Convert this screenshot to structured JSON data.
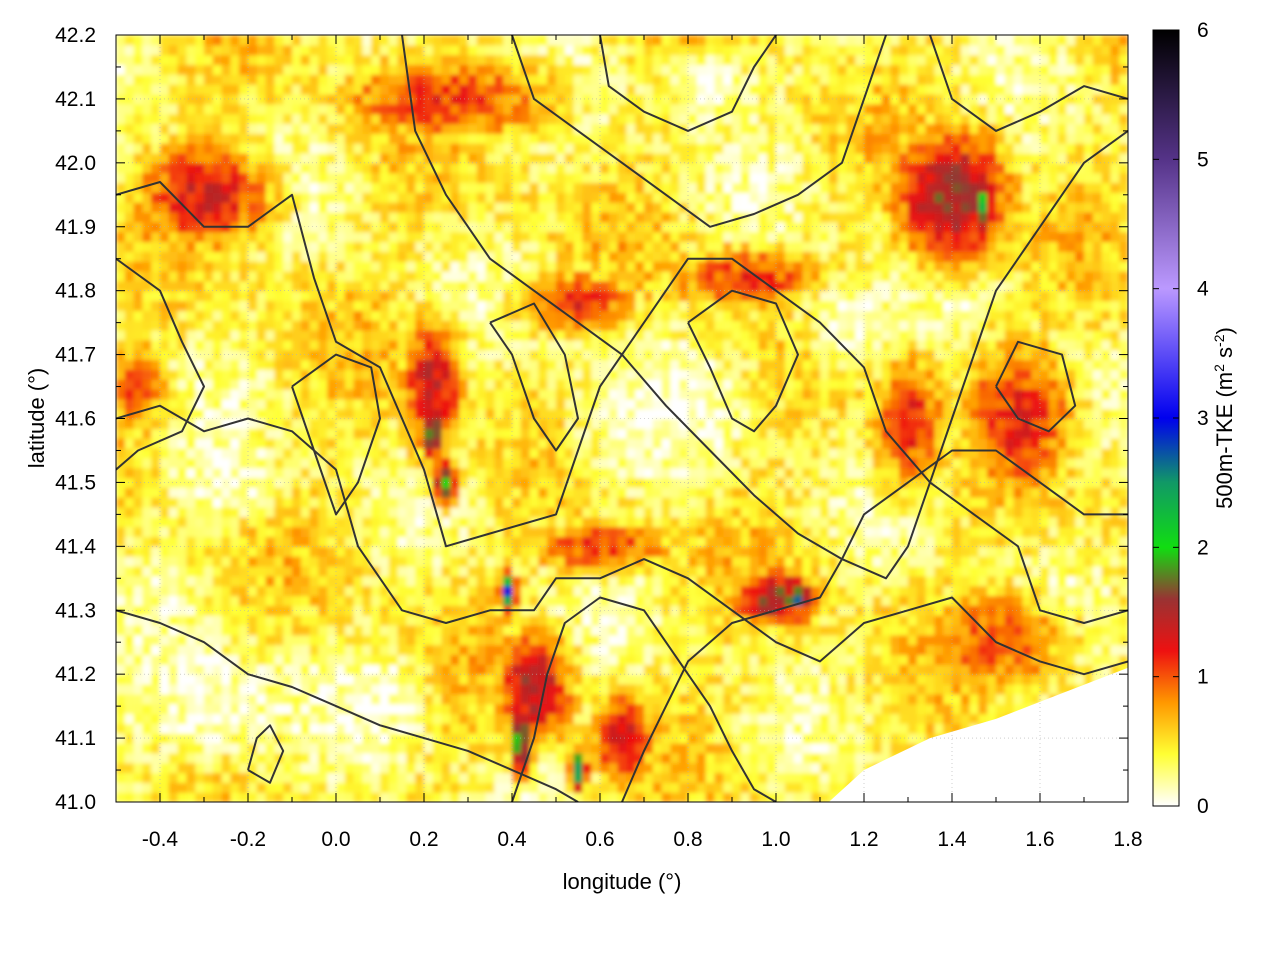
{
  "chart_data": {
    "type": "heatmap",
    "title": "",
    "xlabel": "longitude (°)",
    "ylabel": "latitude (°)",
    "xlim": [
      -0.5,
      1.8
    ],
    "ylim": [
      41.0,
      42.2
    ],
    "x_ticks": [
      -0.4,
      -0.2,
      0.0,
      0.2,
      0.4,
      0.6,
      0.8,
      1.0,
      1.2,
      1.4,
      1.6,
      1.8
    ],
    "x_tick_labels": [
      "-0.4",
      "-0.2",
      "0.0",
      "0.2",
      "0.4",
      "0.6",
      "0.8",
      "1.0",
      "1.2",
      "1.4",
      "1.6",
      "1.8"
    ],
    "y_ticks": [
      41.0,
      41.1,
      41.2,
      41.3,
      41.4,
      41.5,
      41.6,
      41.7,
      41.8,
      41.9,
      42.0,
      42.1,
      42.2
    ],
    "y_tick_labels": [
      "41.0",
      "41.1",
      "41.2",
      "41.3",
      "41.4",
      "41.5",
      "41.6",
      "41.7",
      "41.8",
      "41.9",
      "42.0",
      "42.1",
      "42.2"
    ],
    "grid": true,
    "colorbar": {
      "label_prefix": "500m-TKE (m",
      "label_sup1": "2",
      "label_mid": " s",
      "label_sup2": "-2",
      "label_suffix": ")",
      "range": [
        0,
        6
      ],
      "ticks": [
        0,
        1,
        2,
        3,
        4,
        5,
        6
      ],
      "tick_labels": [
        "0",
        "1",
        "2",
        "3",
        "4",
        "5",
        "6"
      ],
      "stops": [
        {
          "value": 0.0,
          "color": "#ffffff"
        },
        {
          "value": 0.4,
          "color": "#ffff33"
        },
        {
          "value": 0.8,
          "color": "#ff9900"
        },
        {
          "value": 1.2,
          "color": "#ee1111"
        },
        {
          "value": 1.6,
          "color": "#993333"
        },
        {
          "value": 2.0,
          "color": "#11dd11"
        },
        {
          "value": 2.5,
          "color": "#119966"
        },
        {
          "value": 3.0,
          "color": "#0000ee"
        },
        {
          "value": 4.0,
          "color": "#bb99ff"
        },
        {
          "value": 5.0,
          "color": "#553388"
        },
        {
          "value": 6.0,
          "color": "#000000"
        }
      ]
    },
    "field_hotspots": [
      {
        "lon": -0.3,
        "lat": 41.95,
        "tke": 1.3,
        "spread_lon": 0.18,
        "spread_lat": 0.1
      },
      {
        "lon": 0.25,
        "lat": 42.1,
        "tke": 1.1,
        "spread_lon": 0.3,
        "spread_lat": 0.08
      },
      {
        "lon": 0.22,
        "lat": 41.65,
        "tke": 1.4,
        "spread_lon": 0.08,
        "spread_lat": 0.12
      },
      {
        "lon": 0.55,
        "lat": 41.78,
        "tke": 1.2,
        "spread_lon": 0.15,
        "spread_lat": 0.06
      },
      {
        "lon": 0.95,
        "lat": 41.82,
        "tke": 1.1,
        "spread_lon": 0.25,
        "spread_lat": 0.06
      },
      {
        "lon": 1.4,
        "lat": 41.95,
        "tke": 1.6,
        "spread_lon": 0.15,
        "spread_lat": 0.12
      },
      {
        "lon": 1.47,
        "lat": 41.93,
        "tke": 2.1,
        "spread_lon": 0.03,
        "spread_lat": 0.05
      },
      {
        "lon": 0.22,
        "lat": 41.58,
        "tke": 2.0,
        "spread_lon": 0.03,
        "spread_lat": 0.05
      },
      {
        "lon": 0.25,
        "lat": 41.5,
        "tke": 1.9,
        "spread_lon": 0.03,
        "spread_lat": 0.04
      },
      {
        "lon": 0.45,
        "lat": 41.18,
        "tke": 1.5,
        "spread_lon": 0.1,
        "spread_lat": 0.1
      },
      {
        "lon": 0.39,
        "lat": 41.33,
        "tke": 2.8,
        "spread_lon": 0.02,
        "spread_lat": 0.03
      },
      {
        "lon": 0.42,
        "lat": 41.1,
        "tke": 2.0,
        "spread_lon": 0.03,
        "spread_lat": 0.06
      },
      {
        "lon": 0.55,
        "lat": 41.05,
        "tke": 2.7,
        "spread_lon": 0.02,
        "spread_lat": 0.03
      },
      {
        "lon": 0.65,
        "lat": 41.1,
        "tke": 1.4,
        "spread_lon": 0.08,
        "spread_lat": 0.08
      },
      {
        "lon": 1.0,
        "lat": 41.32,
        "tke": 1.6,
        "spread_lon": 0.12,
        "spread_lat": 0.05
      },
      {
        "lon": 1.05,
        "lat": 41.32,
        "tke": 2.6,
        "spread_lon": 0.03,
        "spread_lat": 0.02
      },
      {
        "lon": 1.3,
        "lat": 41.6,
        "tke": 1.2,
        "spread_lon": 0.1,
        "spread_lat": 0.12
      },
      {
        "lon": 1.55,
        "lat": 41.6,
        "tke": 1.2,
        "spread_lon": 0.15,
        "spread_lat": 0.15
      },
      {
        "lon": 1.5,
        "lat": 41.25,
        "tke": 1.0,
        "spread_lon": 0.2,
        "spread_lat": 0.1
      },
      {
        "lon": 0.6,
        "lat": 41.4,
        "tke": 1.1,
        "spread_lon": 0.2,
        "spread_lat": 0.05
      },
      {
        "lon": -0.45,
        "lat": 41.65,
        "tke": 1.0,
        "spread_lon": 0.08,
        "spread_lat": 0.1
      }
    ],
    "field_calm_areas": [
      {
        "lon": 0.7,
        "lat": 41.6,
        "spread_lon": 0.18,
        "spread_lat": 0.1
      },
      {
        "lon": -0.3,
        "lat": 41.15,
        "spread_lon": 0.2,
        "spread_lat": 0.1
      },
      {
        "lon": 0.1,
        "lat": 41.15,
        "spread_lon": 0.1,
        "spread_lat": 0.08
      },
      {
        "lon": 1.15,
        "lat": 41.75,
        "spread_lon": 0.1,
        "spread_lat": 0.08
      },
      {
        "lon": 0.85,
        "lat": 42.12,
        "spread_lon": 0.12,
        "spread_lat": 0.06
      },
      {
        "lon": -0.25,
        "lat": 41.5,
        "spread_lon": 0.12,
        "spread_lat": 0.06
      }
    ],
    "sea_mask": [
      [
        1.8,
        41.21
      ],
      [
        1.65,
        41.17
      ],
      [
        1.5,
        41.13
      ],
      [
        1.35,
        41.1
      ],
      [
        1.2,
        41.05
      ],
      [
        1.12,
        41.0
      ],
      [
        1.8,
        41.0
      ]
    ],
    "contours": [
      [
        [
          -0.5,
          41.95
        ],
        [
          -0.4,
          41.97
        ],
        [
          -0.3,
          41.9
        ],
        [
          -0.2,
          41.9
        ],
        [
          -0.1,
          41.95
        ],
        [
          -0.05,
          41.82
        ],
        [
          0.0,
          41.72
        ],
        [
          0.1,
          41.68
        ],
        [
          0.15,
          41.6
        ],
        [
          0.2,
          41.52
        ],
        [
          0.25,
          41.4
        ],
        [
          0.35,
          41.42
        ],
        [
          0.5,
          41.45
        ],
        [
          0.55,
          41.55
        ],
        [
          0.6,
          41.65
        ],
        [
          0.7,
          41.75
        ],
        [
          0.8,
          41.85
        ],
        [
          0.9,
          41.85
        ],
        [
          1.0,
          41.8
        ],
        [
          1.1,
          41.75
        ],
        [
          1.2,
          41.68
        ],
        [
          1.25,
          41.58
        ],
        [
          1.35,
          41.5
        ],
        [
          1.45,
          41.45
        ],
        [
          1.55,
          41.4
        ],
        [
          1.6,
          41.3
        ],
        [
          1.7,
          41.28
        ],
        [
          1.8,
          41.3
        ]
      ],
      [
        [
          -0.5,
          41.6
        ],
        [
          -0.4,
          41.62
        ],
        [
          -0.3,
          41.58
        ],
        [
          -0.2,
          41.6
        ],
        [
          -0.1,
          41.58
        ],
        [
          0.0,
          41.52
        ],
        [
          0.05,
          41.4
        ],
        [
          0.1,
          41.35
        ],
        [
          0.15,
          41.3
        ],
        [
          0.25,
          41.28
        ],
        [
          0.35,
          41.3
        ],
        [
          0.45,
          41.3
        ],
        [
          0.5,
          41.35
        ],
        [
          0.6,
          41.35
        ],
        [
          0.7,
          41.38
        ],
        [
          0.8,
          41.35
        ],
        [
          0.9,
          41.3
        ],
        [
          1.0,
          41.25
        ],
        [
          1.1,
          41.22
        ],
        [
          1.2,
          41.28
        ],
        [
          1.3,
          41.3
        ],
        [
          1.4,
          41.32
        ],
        [
          1.5,
          41.25
        ],
        [
          1.6,
          41.22
        ],
        [
          1.7,
          41.2
        ],
        [
          1.8,
          41.22
        ]
      ],
      [
        [
          -0.5,
          41.3
        ],
        [
          -0.4,
          41.28
        ],
        [
          -0.3,
          41.25
        ],
        [
          -0.2,
          41.2
        ],
        [
          -0.1,
          41.18
        ],
        [
          0.0,
          41.15
        ],
        [
          0.1,
          41.12
        ],
        [
          0.2,
          41.1
        ],
        [
          0.3,
          41.08
        ],
        [
          0.4,
          41.05
        ],
        [
          0.5,
          41.02
        ],
        [
          0.55,
          41.0
        ]
      ],
      [
        [
          0.15,
          42.2
        ],
        [
          0.18,
          42.05
        ],
        [
          0.25,
          41.95
        ],
        [
          0.35,
          41.85
        ],
        [
          0.45,
          41.8
        ],
        [
          0.55,
          41.75
        ],
        [
          0.65,
          41.7
        ],
        [
          0.75,
          41.62
        ],
        [
          0.85,
          41.55
        ],
        [
          0.95,
          41.48
        ],
        [
          1.05,
          41.42
        ],
        [
          1.15,
          41.38
        ],
        [
          1.25,
          41.35
        ],
        [
          1.3,
          41.4
        ],
        [
          1.35,
          41.5
        ],
        [
          1.4,
          41.6
        ],
        [
          1.45,
          41.7
        ],
        [
          1.5,
          41.8
        ],
        [
          1.6,
          41.9
        ],
        [
          1.7,
          42.0
        ],
        [
          1.8,
          42.05
        ]
      ],
      [
        [
          0.4,
          42.2
        ],
        [
          0.45,
          42.1
        ],
        [
          0.55,
          42.05
        ],
        [
          0.65,
          42.0
        ],
        [
          0.75,
          41.95
        ],
        [
          0.85,
          41.9
        ],
        [
          0.95,
          41.92
        ],
        [
          1.05,
          41.95
        ],
        [
          1.15,
          42.0
        ],
        [
          1.2,
          42.1
        ],
        [
          1.25,
          42.2
        ]
      ],
      [
        [
          0.6,
          42.2
        ],
        [
          0.62,
          42.12
        ],
        [
          0.7,
          42.08
        ],
        [
          0.8,
          42.05
        ],
        [
          0.9,
          42.08
        ],
        [
          0.95,
          42.15
        ],
        [
          1.0,
          42.2
        ]
      ],
      [
        [
          0.4,
          41.0
        ],
        [
          0.45,
          41.1
        ],
        [
          0.48,
          41.2
        ],
        [
          0.52,
          41.28
        ],
        [
          0.6,
          41.32
        ],
        [
          0.7,
          41.3
        ],
        [
          0.75,
          41.25
        ],
        [
          0.8,
          41.2
        ],
        [
          0.85,
          41.15
        ],
        [
          0.9,
          41.08
        ],
        [
          0.95,
          41.02
        ],
        [
          1.0,
          41.0
        ]
      ],
      [
        [
          0.65,
          41.0
        ],
        [
          0.7,
          41.08
        ],
        [
          0.75,
          41.15
        ],
        [
          0.8,
          41.22
        ],
        [
          0.9,
          41.28
        ],
        [
          1.0,
          41.3
        ],
        [
          1.1,
          41.32
        ],
        [
          1.15,
          41.38
        ],
        [
          1.2,
          41.45
        ],
        [
          1.3,
          41.5
        ],
        [
          1.4,
          41.55
        ],
        [
          1.5,
          41.55
        ],
        [
          1.6,
          41.5
        ],
        [
          1.7,
          41.45
        ],
        [
          1.8,
          41.45
        ]
      ],
      [
        [
          -0.1,
          41.65
        ],
        [
          -0.05,
          41.55
        ],
        [
          0.0,
          41.45
        ],
        [
          0.05,
          41.5
        ],
        [
          0.1,
          41.6
        ],
        [
          0.08,
          41.68
        ],
        [
          0.0,
          41.7
        ],
        [
          -0.1,
          41.65
        ]
      ],
      [
        [
          0.35,
          41.75
        ],
        [
          0.4,
          41.7
        ],
        [
          0.45,
          41.6
        ],
        [
          0.5,
          41.55
        ],
        [
          0.55,
          41.6
        ],
        [
          0.52,
          41.7
        ],
        [
          0.45,
          41.78
        ],
        [
          0.35,
          41.75
        ]
      ],
      [
        [
          0.8,
          41.75
        ],
        [
          0.85,
          41.68
        ],
        [
          0.9,
          41.6
        ],
        [
          0.95,
          41.58
        ],
        [
          1.0,
          41.62
        ],
        [
          1.05,
          41.7
        ],
        [
          1.0,
          41.78
        ],
        [
          0.9,
          41.8
        ],
        [
          0.8,
          41.75
        ]
      ],
      [
        [
          -0.2,
          41.05
        ],
        [
          -0.18,
          41.1
        ],
        [
          -0.15,
          41.12
        ],
        [
          -0.12,
          41.08
        ],
        [
          -0.15,
          41.03
        ],
        [
          -0.2,
          41.05
        ]
      ],
      [
        [
          1.5,
          41.65
        ],
        [
          1.55,
          41.6
        ],
        [
          1.62,
          41.58
        ],
        [
          1.68,
          41.62
        ],
        [
          1.65,
          41.7
        ],
        [
          1.55,
          41.72
        ],
        [
          1.5,
          41.65
        ]
      ],
      [
        [
          -0.5,
          41.85
        ],
        [
          -0.4,
          41.8
        ],
        [
          -0.35,
          41.72
        ],
        [
          -0.3,
          41.65
        ],
        [
          -0.35,
          41.58
        ],
        [
          -0.45,
          41.55
        ],
        [
          -0.5,
          41.52
        ]
      ],
      [
        [
          1.35,
          42.2
        ],
        [
          1.4,
          42.1
        ],
        [
          1.5,
          42.05
        ],
        [
          1.6,
          42.08
        ],
        [
          1.7,
          42.12
        ],
        [
          1.8,
          42.1
        ]
      ]
    ]
  }
}
